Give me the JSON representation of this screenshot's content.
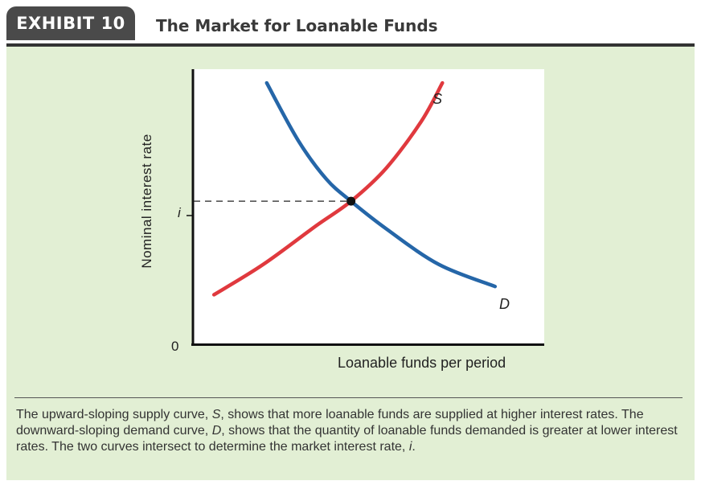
{
  "exhibit": {
    "tab_label": "EXHIBIT 10",
    "title": "The Market for Loanable Funds"
  },
  "colors": {
    "panel_bg": "#e2efd4",
    "supply_curve": "#e0393e",
    "demand_curve": "#2566a8",
    "header_tab": "#4a4a4a"
  },
  "chart_data": {
    "type": "line",
    "title": "The Market for Loanable Funds",
    "xlabel": "Loanable funds per period",
    "ylabel": "Nominal interest rate",
    "x_tick_labels": [
      "0"
    ],
    "y_tick_labels": [
      "i"
    ],
    "grid": false,
    "series": [
      {
        "name": "S",
        "points": [
          [
            0.06,
            0.18
          ],
          [
            0.2,
            0.29
          ],
          [
            0.35,
            0.43
          ],
          [
            0.45,
            0.52
          ],
          [
            0.55,
            0.64
          ],
          [
            0.65,
            0.81
          ],
          [
            0.71,
            0.95
          ]
        ]
      },
      {
        "name": "D",
        "points": [
          [
            0.21,
            0.95
          ],
          [
            0.3,
            0.74
          ],
          [
            0.38,
            0.6
          ],
          [
            0.45,
            0.52
          ],
          [
            0.55,
            0.42
          ],
          [
            0.7,
            0.29
          ],
          [
            0.86,
            0.21
          ]
        ]
      }
    ],
    "equilibrium": {
      "x": 0.45,
      "y": 0.52,
      "label": "i"
    },
    "xlim": [
      0,
      1
    ],
    "ylim": [
      0,
      1
    ]
  },
  "caption": {
    "p1": "The upward-sloping supply curve, ",
    "s": "S",
    "p2": ", shows that more loanable funds are supplied at higher interest rates. The downward-sloping demand curve, ",
    "d": "D",
    "p3": ", shows that the quantity of loanable funds demanded is greater at lower interest rates. The two curves intersect to determine the market interest rate, ",
    "i": "i",
    "p4": "."
  }
}
